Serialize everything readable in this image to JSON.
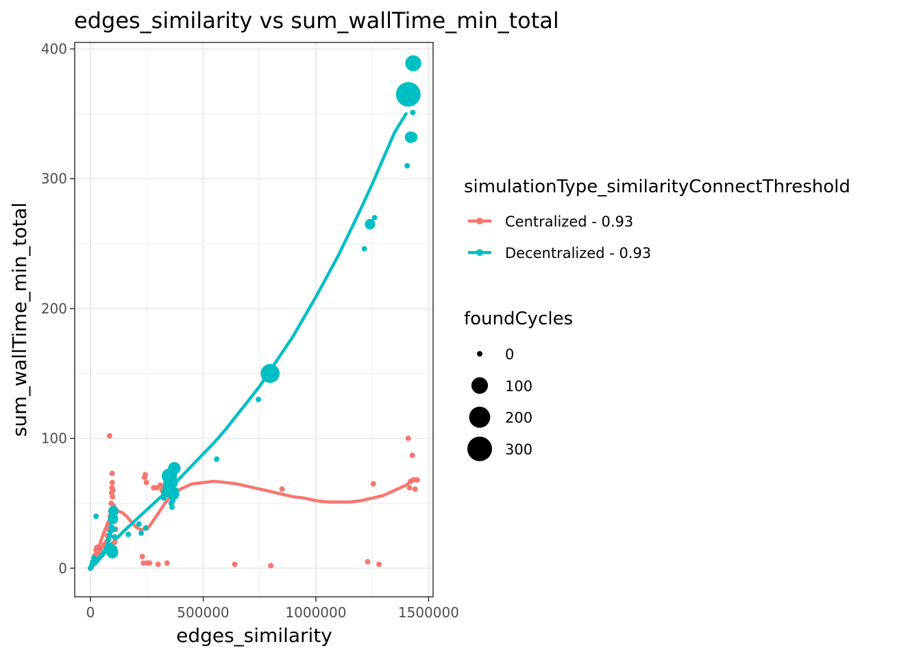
{
  "chart_data": {
    "type": "scatter",
    "title": "edges_similarity  vs  sum_wallTime_min_total",
    "xlabel": "edges_similarity",
    "ylabel": "sum_wallTime_min_total",
    "xlim": [
      -70000,
      1520000
    ],
    "ylim": [
      -22,
      405
    ],
    "x_ticks": [
      0,
      500000,
      1000000,
      1500000
    ],
    "x_tick_labels": [
      "0",
      "500000",
      "1000000",
      "1500000"
    ],
    "y_ticks": [
      0,
      100,
      200,
      300,
      400
    ],
    "y_tick_labels": [
      "0",
      "100",
      "200",
      "300",
      "400"
    ],
    "grid": true,
    "legend_color_title": "simulationType_similarityConnectThreshold",
    "legend_size_title": "foundCycles",
    "size_legend": [
      {
        "label": "0",
        "value": 0
      },
      {
        "label": "100",
        "value": 100
      },
      {
        "label": "200",
        "value": 200
      },
      {
        "label": "300",
        "value": 300
      }
    ],
    "series": [
      {
        "name": "Centralized - 0.93",
        "color": "#F8766D",
        "points": [
          [
            0,
            0,
            0
          ],
          [
            5000,
            1,
            0
          ],
          [
            10000,
            3,
            0
          ],
          [
            15000,
            5,
            0
          ],
          [
            20000,
            10,
            0
          ],
          [
            25000,
            14,
            0
          ],
          [
            28000,
            16,
            0
          ],
          [
            35000,
            12,
            0
          ],
          [
            45000,
            15,
            0
          ],
          [
            60000,
            18,
            0
          ],
          [
            70000,
            20,
            0
          ],
          [
            75000,
            25,
            0
          ],
          [
            80000,
            30,
            0
          ],
          [
            82000,
            35,
            0
          ],
          [
            85000,
            102,
            0
          ],
          [
            88000,
            40,
            0
          ],
          [
            90000,
            44,
            0
          ],
          [
            92000,
            50,
            0
          ],
          [
            94000,
            58,
            0
          ],
          [
            95000,
            62,
            0
          ],
          [
            96000,
            73,
            0
          ],
          [
            97000,
            66,
            0
          ],
          [
            98000,
            55,
            0
          ],
          [
            100000,
            60,
            0
          ],
          [
            102000,
            48,
            0
          ],
          [
            105000,
            24,
            0
          ],
          [
            108000,
            20,
            0
          ],
          [
            112000,
            30,
            0
          ],
          [
            230000,
            9,
            0
          ],
          [
            235000,
            4,
            0
          ],
          [
            240000,
            70,
            0
          ],
          [
            243000,
            72,
            0
          ],
          [
            248000,
            66,
            0
          ],
          [
            250000,
            31,
            0
          ],
          [
            252000,
            4,
            0
          ],
          [
            262000,
            4,
            0
          ],
          [
            280000,
            62,
            0
          ],
          [
            295000,
            62,
            0
          ],
          [
            300000,
            3,
            0
          ],
          [
            310000,
            64,
            0
          ],
          [
            318000,
            60,
            0
          ],
          [
            325000,
            62,
            0
          ],
          [
            340000,
            4,
            0
          ],
          [
            350000,
            62,
            0
          ],
          [
            360000,
            64,
            0
          ],
          [
            370000,
            64,
            0
          ],
          [
            640000,
            3,
            0
          ],
          [
            800000,
            2,
            0
          ],
          [
            850000,
            61,
            0
          ],
          [
            1230000,
            5,
            0
          ],
          [
            1255000,
            65,
            0
          ],
          [
            1280000,
            3,
            0
          ],
          [
            1410000,
            100,
            0
          ],
          [
            1415000,
            62,
            0
          ],
          [
            1420000,
            67,
            0
          ],
          [
            1428000,
            87,
            0
          ],
          [
            1432000,
            68,
            0
          ],
          [
            1440000,
            61,
            0
          ],
          [
            1450000,
            68,
            0
          ]
        ],
        "trend": [
          [
            0,
            0
          ],
          [
            20000,
            8
          ],
          [
            40000,
            18
          ],
          [
            60000,
            28
          ],
          [
            80000,
            36
          ],
          [
            100000,
            42
          ],
          [
            120000,
            44
          ],
          [
            140000,
            43
          ],
          [
            160000,
            40
          ],
          [
            180000,
            36
          ],
          [
            200000,
            32
          ],
          [
            220000,
            30
          ],
          [
            240000,
            30
          ],
          [
            260000,
            32
          ],
          [
            280000,
            37
          ],
          [
            300000,
            42
          ],
          [
            330000,
            50
          ],
          [
            360000,
            56
          ],
          [
            400000,
            61
          ],
          [
            450000,
            65
          ],
          [
            500000,
            66
          ],
          [
            550000,
            67
          ],
          [
            600000,
            66
          ],
          [
            650000,
            65
          ],
          [
            700000,
            63
          ],
          [
            750000,
            61
          ],
          [
            800000,
            59
          ],
          [
            850000,
            57
          ],
          [
            900000,
            55
          ],
          [
            950000,
            54
          ],
          [
            1000000,
            52
          ],
          [
            1050000,
            51
          ],
          [
            1100000,
            51
          ],
          [
            1150000,
            51
          ],
          [
            1200000,
            52
          ],
          [
            1250000,
            54
          ],
          [
            1300000,
            56
          ],
          [
            1350000,
            60
          ],
          [
            1400000,
            64
          ],
          [
            1440000,
            69
          ]
        ]
      },
      {
        "name": "Decentralized - 0.93",
        "color": "#00BFC4",
        "points": [
          [
            0,
            0,
            0
          ],
          [
            5000,
            2,
            0
          ],
          [
            10000,
            5,
            0
          ],
          [
            15000,
            8,
            0
          ],
          [
            20000,
            4,
            0
          ],
          [
            25000,
            40,
            0
          ],
          [
            30000,
            6,
            0
          ],
          [
            40000,
            8,
            0
          ],
          [
            50000,
            10,
            0
          ],
          [
            60000,
            12,
            0
          ],
          [
            70000,
            15,
            0
          ],
          [
            78000,
            18,
            0
          ],
          [
            80000,
            22,
            0
          ],
          [
            85000,
            25,
            0
          ],
          [
            88000,
            28,
            0
          ],
          [
            92000,
            32,
            0
          ],
          [
            95000,
            14,
            30
          ],
          [
            97000,
            12,
            30
          ],
          [
            100000,
            38,
            20
          ],
          [
            102000,
            44,
            20
          ],
          [
            105000,
            30,
            0
          ],
          [
            108000,
            24,
            0
          ],
          [
            168000,
            26,
            0
          ],
          [
            215000,
            34,
            0
          ],
          [
            225000,
            27,
            0
          ],
          [
            245000,
            31,
            0
          ],
          [
            325000,
            54,
            0
          ],
          [
            335000,
            58,
            15
          ],
          [
            340000,
            62,
            10
          ],
          [
            345000,
            65,
            20
          ],
          [
            350000,
            71,
            80
          ],
          [
            355000,
            60,
            10
          ],
          [
            358000,
            50,
            0
          ],
          [
            360000,
            66,
            40
          ],
          [
            362000,
            47,
            0
          ],
          [
            365000,
            52,
            0
          ],
          [
            368000,
            57,
            30
          ],
          [
            372000,
            77,
            40
          ],
          [
            376000,
            55,
            0
          ],
          [
            380000,
            60,
            0
          ],
          [
            560000,
            84,
            0
          ],
          [
            745000,
            130,
            0
          ],
          [
            797000,
            150,
            150
          ],
          [
            1215000,
            246,
            0
          ],
          [
            1240000,
            265,
            20
          ],
          [
            1260000,
            270,
            0
          ],
          [
            1405000,
            310,
            0
          ],
          [
            1410000,
            365,
            300
          ],
          [
            1420000,
            332,
            30
          ],
          [
            1428000,
            332,
            20
          ],
          [
            1430000,
            351,
            0
          ],
          [
            1432000,
            389,
            90
          ],
          [
            1440000,
            360,
            0
          ]
        ],
        "trend": [
          [
            0,
            0
          ],
          [
            50000,
            10
          ],
          [
            100000,
            20
          ],
          [
            150000,
            29
          ],
          [
            200000,
            37
          ],
          [
            250000,
            45
          ],
          [
            300000,
            53
          ],
          [
            350000,
            61
          ],
          [
            400000,
            70
          ],
          [
            450000,
            79
          ],
          [
            500000,
            88
          ],
          [
            550000,
            97
          ],
          [
            600000,
            107
          ],
          [
            650000,
            118
          ],
          [
            700000,
            129
          ],
          [
            750000,
            140
          ],
          [
            800000,
            153
          ],
          [
            850000,
            166
          ],
          [
            900000,
            179
          ],
          [
            950000,
            194
          ],
          [
            1000000,
            209
          ],
          [
            1050000,
            225
          ],
          [
            1100000,
            241
          ],
          [
            1150000,
            259
          ],
          [
            1200000,
            277
          ],
          [
            1250000,
            296
          ],
          [
            1300000,
            316
          ],
          [
            1350000,
            336
          ],
          [
            1400000,
            350
          ]
        ]
      }
    ]
  }
}
